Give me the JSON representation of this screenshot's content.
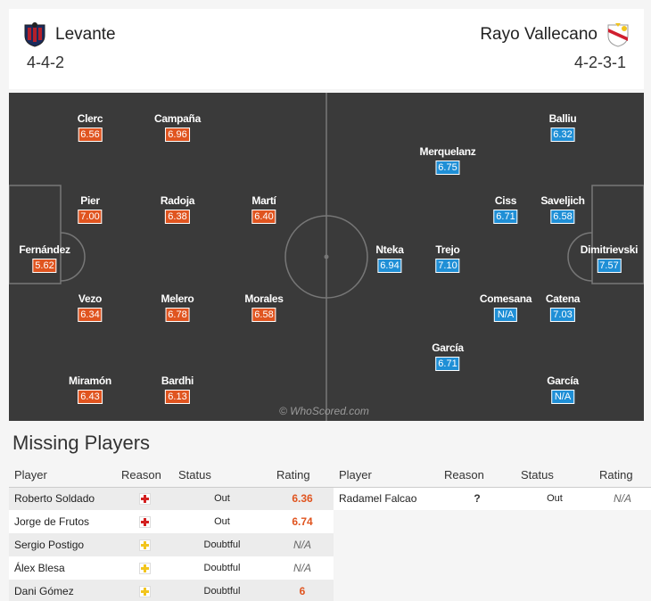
{
  "header": {
    "home": {
      "name": "Levante",
      "formation": "4-4-2"
    },
    "away": {
      "name": "Rayo Vallecano",
      "formation": "4-2-3-1"
    }
  },
  "pitch": {
    "watermark": "© WhoScored.com",
    "home_players": [
      {
        "name": "Clerc",
        "rating": "6.56"
      },
      {
        "name": "Campaña",
        "rating": "6.96"
      },
      {
        "name": "Pier",
        "rating": "7.00"
      },
      {
        "name": "Radoja",
        "rating": "6.38"
      },
      {
        "name": "Martí",
        "rating": "6.40"
      },
      {
        "name": "Fernández",
        "rating": "5.62"
      },
      {
        "name": "Vezo",
        "rating": "6.34"
      },
      {
        "name": "Melero",
        "rating": "6.78"
      },
      {
        "name": "Morales",
        "rating": "6.58"
      },
      {
        "name": "Miramón",
        "rating": "6.43"
      },
      {
        "name": "Bardhi",
        "rating": "6.13"
      }
    ],
    "away_players": [
      {
        "name": "Balliu",
        "rating": "6.32"
      },
      {
        "name": "Merquelanz",
        "rating": "6.75"
      },
      {
        "name": "Ciss",
        "rating": "6.71"
      },
      {
        "name": "Saveljich",
        "rating": "6.58"
      },
      {
        "name": "Nteka",
        "rating": "6.94"
      },
      {
        "name": "Trejo",
        "rating": "7.10"
      },
      {
        "name": "Dimitrievski",
        "rating": "7.57"
      },
      {
        "name": "Comesana",
        "rating": "N/A"
      },
      {
        "name": "Catena",
        "rating": "7.03"
      },
      {
        "name": "García",
        "rating": "6.71"
      },
      {
        "name": "García",
        "rating": "N/A"
      }
    ]
  },
  "missing": {
    "title": "Missing Players",
    "columns": {
      "player": "Player",
      "reason": "Reason",
      "status": "Status",
      "rating": "Rating"
    },
    "home": [
      {
        "player": "Roberto Soldado",
        "reason": "injury-red-icon",
        "status": "Out",
        "rating": "6.36"
      },
      {
        "player": "Jorge de Frutos",
        "reason": "injury-red-icon",
        "status": "Out",
        "rating": "6.74"
      },
      {
        "player": "Sergio Postigo",
        "reason": "injury-yellow-icon",
        "status": "Doubtful",
        "rating": "N/A"
      },
      {
        "player": "Álex Blesa",
        "reason": "injury-yellow-icon",
        "status": "Doubtful",
        "rating": "N/A"
      },
      {
        "player": "Dani Gómez",
        "reason": "injury-yellow-icon",
        "status": "Doubtful",
        "rating": "6"
      }
    ],
    "away": [
      {
        "player": "Radamel Falcao",
        "reason": "?",
        "status": "Out",
        "rating": "N/A"
      }
    ]
  },
  "colors": {
    "home_accent": "#e0541f",
    "away_accent": "#1f8fd6",
    "pitch": "#3a3a3a"
  }
}
